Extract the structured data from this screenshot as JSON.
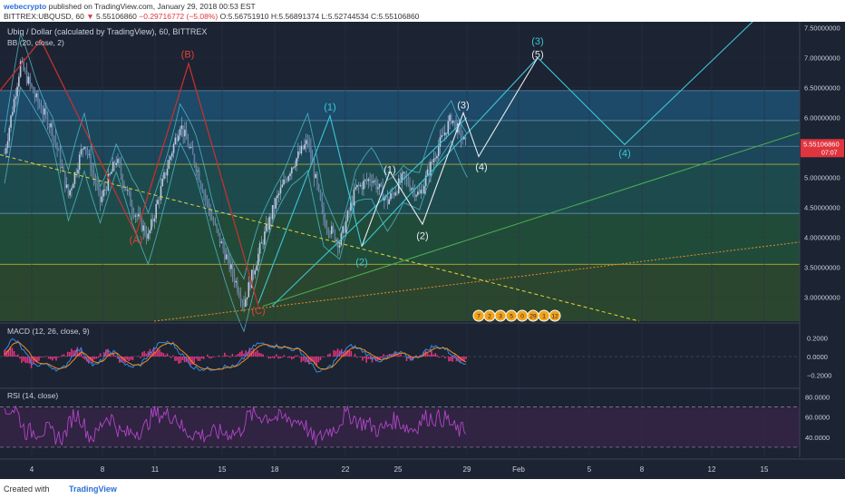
{
  "header": {
    "author": "webecrypto",
    "published": "published on TradingView.com, January 29, 2018 00:53 EST",
    "symbol": "BITTREX:UBQUSD, 60",
    "last": "5.55106860",
    "change": "−0.29716772 (−5.08%)",
    "ohlc": "O:5.56751910 H:5.56891374 L:5.52744534 C:5.55106860"
  },
  "footer": {
    "created_with": "Created with",
    "brand": "TradingView"
  },
  "colors": {
    "bg": "#1c2332",
    "grid": "#2b3346",
    "candle": "#8fa7c6",
    "bb": "#4fb7c9",
    "cyan": "#3cc6d6",
    "white": "#e8edf2",
    "red": "#c0322f",
    "green": "#4caf50",
    "orange": "#e38d2f",
    "yellow": "#e4d43a",
    "macd": "#2f8ce6",
    "signal": "#f08a1e",
    "hist": "#e0347c",
    "rsi": "#b146c8"
  },
  "chart_data": {
    "type": "candlestick",
    "title": "Ubiq / Dollar (calculated by TradingView), 60, BITTREX",
    "indicator": "BB (20, close, 2)",
    "ylim": [
      2.6,
      7.6
    ],
    "y_ticks": [
      "7.50000000",
      "7.00000000",
      "6.50000000",
      "6.00000000",
      "5.50000000",
      "5.00000000",
      "4.50000000",
      "4.00000000",
      "3.50000000",
      "3.00000000"
    ],
    "y_tick_values": [
      7.5,
      7.0,
      6.5,
      6.0,
      5.5,
      5.0,
      4.5,
      4.0,
      3.5,
      3.0
    ],
    "x_ticks": [
      "4",
      "8",
      "11",
      "15",
      "18",
      "22",
      "25",
      "29",
      "Feb",
      "5",
      "8",
      "12",
      "15"
    ],
    "last_price": "5.55106860",
    "countdown": "07:07",
    "zones": [
      {
        "from": 5.95,
        "to": 6.45,
        "color": "#1e4f6e"
      },
      {
        "from": 5.22,
        "to": 5.95,
        "color": "#1d4a5e"
      },
      {
        "from": 4.4,
        "to": 5.22,
        "color": "#1e5050"
      },
      {
        "from": 3.55,
        "to": 4.4,
        "color": "#22503a"
      },
      {
        "from": 2.6,
        "to": 3.55,
        "color": "#2d4a2e"
      }
    ],
    "zone_lines": [
      6.45,
      5.95,
      5.52,
      5.22,
      4.4,
      3.55
    ],
    "price_path": [
      [
        0,
        5.4
      ],
      [
        1,
        6.9
      ],
      [
        2,
        6.3
      ],
      [
        3,
        5.8
      ],
      [
        4,
        4.7
      ],
      [
        5,
        5.6
      ],
      [
        6,
        4.6
      ],
      [
        7,
        5.3
      ],
      [
        8,
        4.5
      ],
      [
        9,
        4.0
      ],
      [
        10,
        5.0
      ],
      [
        11,
        5.9
      ],
      [
        12,
        5.2
      ],
      [
        13,
        4.3
      ],
      [
        14,
        3.6
      ],
      [
        15,
        2.9
      ],
      [
        16,
        3.8
      ],
      [
        17,
        4.6
      ],
      [
        18,
        5.2
      ],
      [
        19,
        5.6
      ],
      [
        20,
        4.3
      ],
      [
        21,
        3.9
      ],
      [
        22,
        4.8
      ],
      [
        23,
        5.0
      ],
      [
        24,
        4.6
      ],
      [
        25,
        5.0
      ],
      [
        26,
        4.7
      ],
      [
        27,
        5.4
      ],
      [
        28,
        6.0
      ],
      [
        29,
        5.5
      ]
    ],
    "wave_labels": [
      {
        "text": "(B)",
        "x": 207,
        "y": 7.0,
        "color": "red"
      },
      {
        "text": "(A)",
        "x": 150,
        "y": 3.9,
        "color": "red"
      },
      {
        "text": "(C)",
        "x": 285,
        "y": 2.72,
        "color": "red"
      },
      {
        "text": "(1)",
        "x": 364,
        "y": 6.12,
        "color": "cyan"
      },
      {
        "text": "(2)",
        "x": 399,
        "y": 3.53,
        "color": "cyan"
      },
      {
        "text": "(3)",
        "x": 593,
        "y": 7.22,
        "color": "cyan"
      },
      {
        "text": "(5)",
        "x": 593,
        "y": 7.0,
        "color": "white"
      },
      {
        "text": "(4)",
        "x": 689,
        "y": 5.35,
        "color": "cyan"
      },
      {
        "text": "(1)",
        "x": 430,
        "y": 5.08,
        "color": "white"
      },
      {
        "text": "(2)",
        "x": 466,
        "y": 3.97,
        "color": "white"
      },
      {
        "text": "(3)",
        "x": 511,
        "y": 6.15,
        "color": "white"
      },
      {
        "text": "(4)",
        "x": 531,
        "y": 5.12,
        "color": "white"
      }
    ],
    "event_markers": [
      "7",
      "2",
      "3",
      "5",
      "0",
      "29",
      "1",
      "12"
    ],
    "macd": {
      "label": "MACD (12, 26, close, 9)",
      "y_ticks": [
        "0.2000",
        "0.0000",
        "−0.2000"
      ],
      "ylim": [
        -0.32,
        0.32
      ]
    },
    "rsi": {
      "label": "RSI (14, close)",
      "y_ticks": [
        "80.0000",
        "60.0000",
        "40.0000"
      ],
      "bands": [
        70,
        30
      ],
      "ylim": [
        20,
        85
      ]
    }
  }
}
